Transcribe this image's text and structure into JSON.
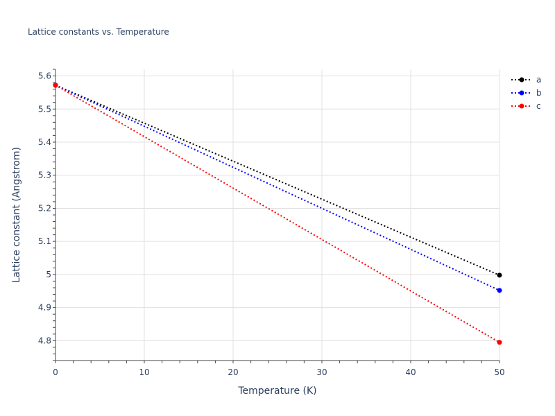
{
  "chart_data": {
    "type": "line",
    "title": "Lattice constants vs. Temperature",
    "xlabel": "Temperature (K)",
    "ylabel": "Lattice constant (Angstrom)",
    "xlim": [
      0,
      50
    ],
    "ylim": [
      4.74,
      5.62
    ],
    "x_ticks": [
      0,
      10,
      20,
      30,
      40,
      50
    ],
    "x_tick_labels": [
      "0",
      "10",
      "20",
      "30",
      "40",
      "50"
    ],
    "y_ticks": [
      4.8,
      4.9,
      5.0,
      5.1,
      5.2,
      5.3,
      5.4,
      5.5,
      5.6
    ],
    "y_tick_labels": [
      "4.8",
      "4.9",
      "5",
      "5.1",
      "5.2",
      "5.3",
      "5.4",
      "5.5",
      "5.6"
    ],
    "grid": true,
    "legend_position": "top-right",
    "series": [
      {
        "name": "a",
        "color": "#000000",
        "x": [
          0,
          50
        ],
        "y": [
          5.572,
          4.998
        ]
      },
      {
        "name": "b",
        "color": "#0000ff",
        "x": [
          0,
          50
        ],
        "y": [
          5.572,
          4.952
        ]
      },
      {
        "name": "c",
        "color": "#ff0000",
        "x": [
          0,
          50
        ],
        "y": [
          5.572,
          4.795
        ]
      }
    ]
  }
}
